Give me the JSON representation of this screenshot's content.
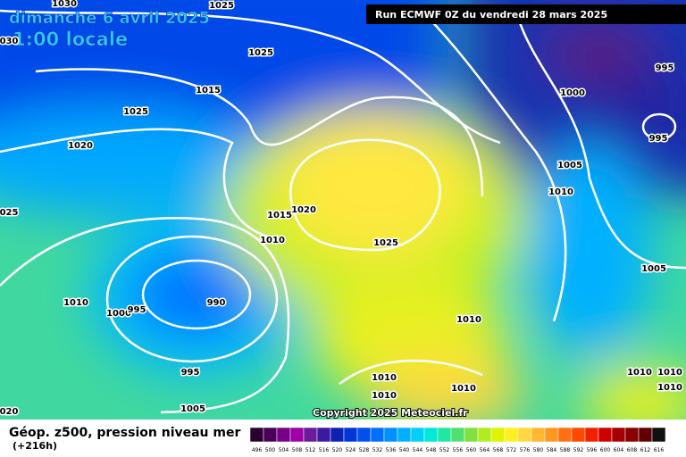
{
  "header": {
    "date": "dimanche 6 avril 2025",
    "time": "1:00 locale",
    "run": "Run ECMWF 0Z du vendredi 28 mars 2025"
  },
  "isobar_labels": [
    "1030",
    "1025",
    "030",
    "1025",
    "1015",
    "1025",
    "1020",
    "025",
    "1015",
    "1020",
    "1010",
    "1025",
    "1010",
    "1000",
    "995",
    "990",
    "995",
    "1005",
    "020",
    "1010",
    "1010",
    "1010",
    "1010",
    "1000",
    "995",
    "995",
    "1005",
    "1010",
    "1005",
    "1010",
    "1010",
    "1010"
  ],
  "copyright": "Copyright 2025 Meteociel.fr",
  "footer": {
    "title": "Géop. z500, pression niveau mer",
    "lead": "(+216h)"
  },
  "scale": [
    {
      "label": "496",
      "color": "#2a0030"
    },
    {
      "label": "500",
      "color": "#4a0058"
    },
    {
      "label": "504",
      "color": "#780088"
    },
    {
      "label": "508",
      "color": "#a000a8"
    },
    {
      "label": "512",
      "color": "#6a1a9a"
    },
    {
      "label": "516",
      "color": "#3a1aa0"
    },
    {
      "label": "520",
      "color": "#1020b0"
    },
    {
      "label": "524",
      "color": "#0038d8"
    },
    {
      "label": "528",
      "color": "#0050f0"
    },
    {
      "label": "532",
      "color": "#0070ff"
    },
    {
      "label": "536",
      "color": "#0090ff"
    },
    {
      "label": "540",
      "color": "#00b0ff"
    },
    {
      "label": "544",
      "color": "#00d0f8"
    },
    {
      "label": "548",
      "color": "#00e8d8"
    },
    {
      "label": "552",
      "color": "#20e8a0"
    },
    {
      "label": "556",
      "color": "#50e070"
    },
    {
      "label": "560",
      "color": "#80e040"
    },
    {
      "label": "564",
      "color": "#b0ec20"
    },
    {
      "label": "568",
      "color": "#e0f400"
    },
    {
      "label": "572",
      "color": "#fff020"
    },
    {
      "label": "576",
      "color": "#ffd840"
    },
    {
      "label": "580",
      "color": "#ffb830"
    },
    {
      "label": "584",
      "color": "#ff9820"
    },
    {
      "label": "588",
      "color": "#ff7010"
    },
    {
      "label": "592",
      "color": "#ff4800"
    },
    {
      "label": "596",
      "color": "#f02000"
    },
    {
      "label": "600",
      "color": "#d00000"
    },
    {
      "label": "604",
      "color": "#a80000"
    },
    {
      "label": "608",
      "color": "#880000"
    },
    {
      "label": "612",
      "color": "#600000"
    },
    {
      "label": "616",
      "color": "#101010"
    }
  ]
}
